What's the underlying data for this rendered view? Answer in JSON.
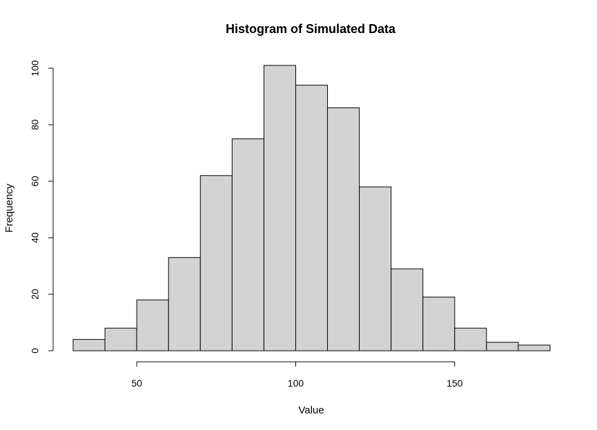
{
  "chart_data": {
    "type": "bar",
    "title": "Histogram of Simulated Data",
    "xlabel": "Value",
    "ylabel": "Frequency",
    "bins": [
      {
        "start": 30,
        "end": 40,
        "count": 4
      },
      {
        "start": 40,
        "end": 50,
        "count": 8
      },
      {
        "start": 50,
        "end": 60,
        "count": 18
      },
      {
        "start": 60,
        "end": 70,
        "count": 33
      },
      {
        "start": 70,
        "end": 80,
        "count": 62
      },
      {
        "start": 80,
        "end": 90,
        "count": 75
      },
      {
        "start": 90,
        "end": 100,
        "count": 101
      },
      {
        "start": 100,
        "end": 110,
        "count": 94
      },
      {
        "start": 110,
        "end": 120,
        "count": 86
      },
      {
        "start": 120,
        "end": 130,
        "count": 58
      },
      {
        "start": 130,
        "end": 140,
        "count": 29
      },
      {
        "start": 140,
        "end": 150,
        "count": 19
      },
      {
        "start": 150,
        "end": 160,
        "count": 8
      },
      {
        "start": 160,
        "end": 170,
        "count": 3
      },
      {
        "start": 170,
        "end": 180,
        "count": 2
      }
    ],
    "xlim": [
      30,
      180
    ],
    "ylim": [
      0,
      100
    ],
    "x_ticks": [
      50,
      100,
      150
    ],
    "y_ticks": [
      0,
      20,
      40,
      60,
      80,
      100
    ],
    "x_tick_labels": [
      "50",
      "100",
      "150"
    ],
    "y_tick_labels": [
      "0",
      "20",
      "40",
      "60",
      "80",
      "100"
    ],
    "bar_fill": "#d3d3d3",
    "bar_stroke": "#000000",
    "grid": false,
    "legend": "none"
  }
}
